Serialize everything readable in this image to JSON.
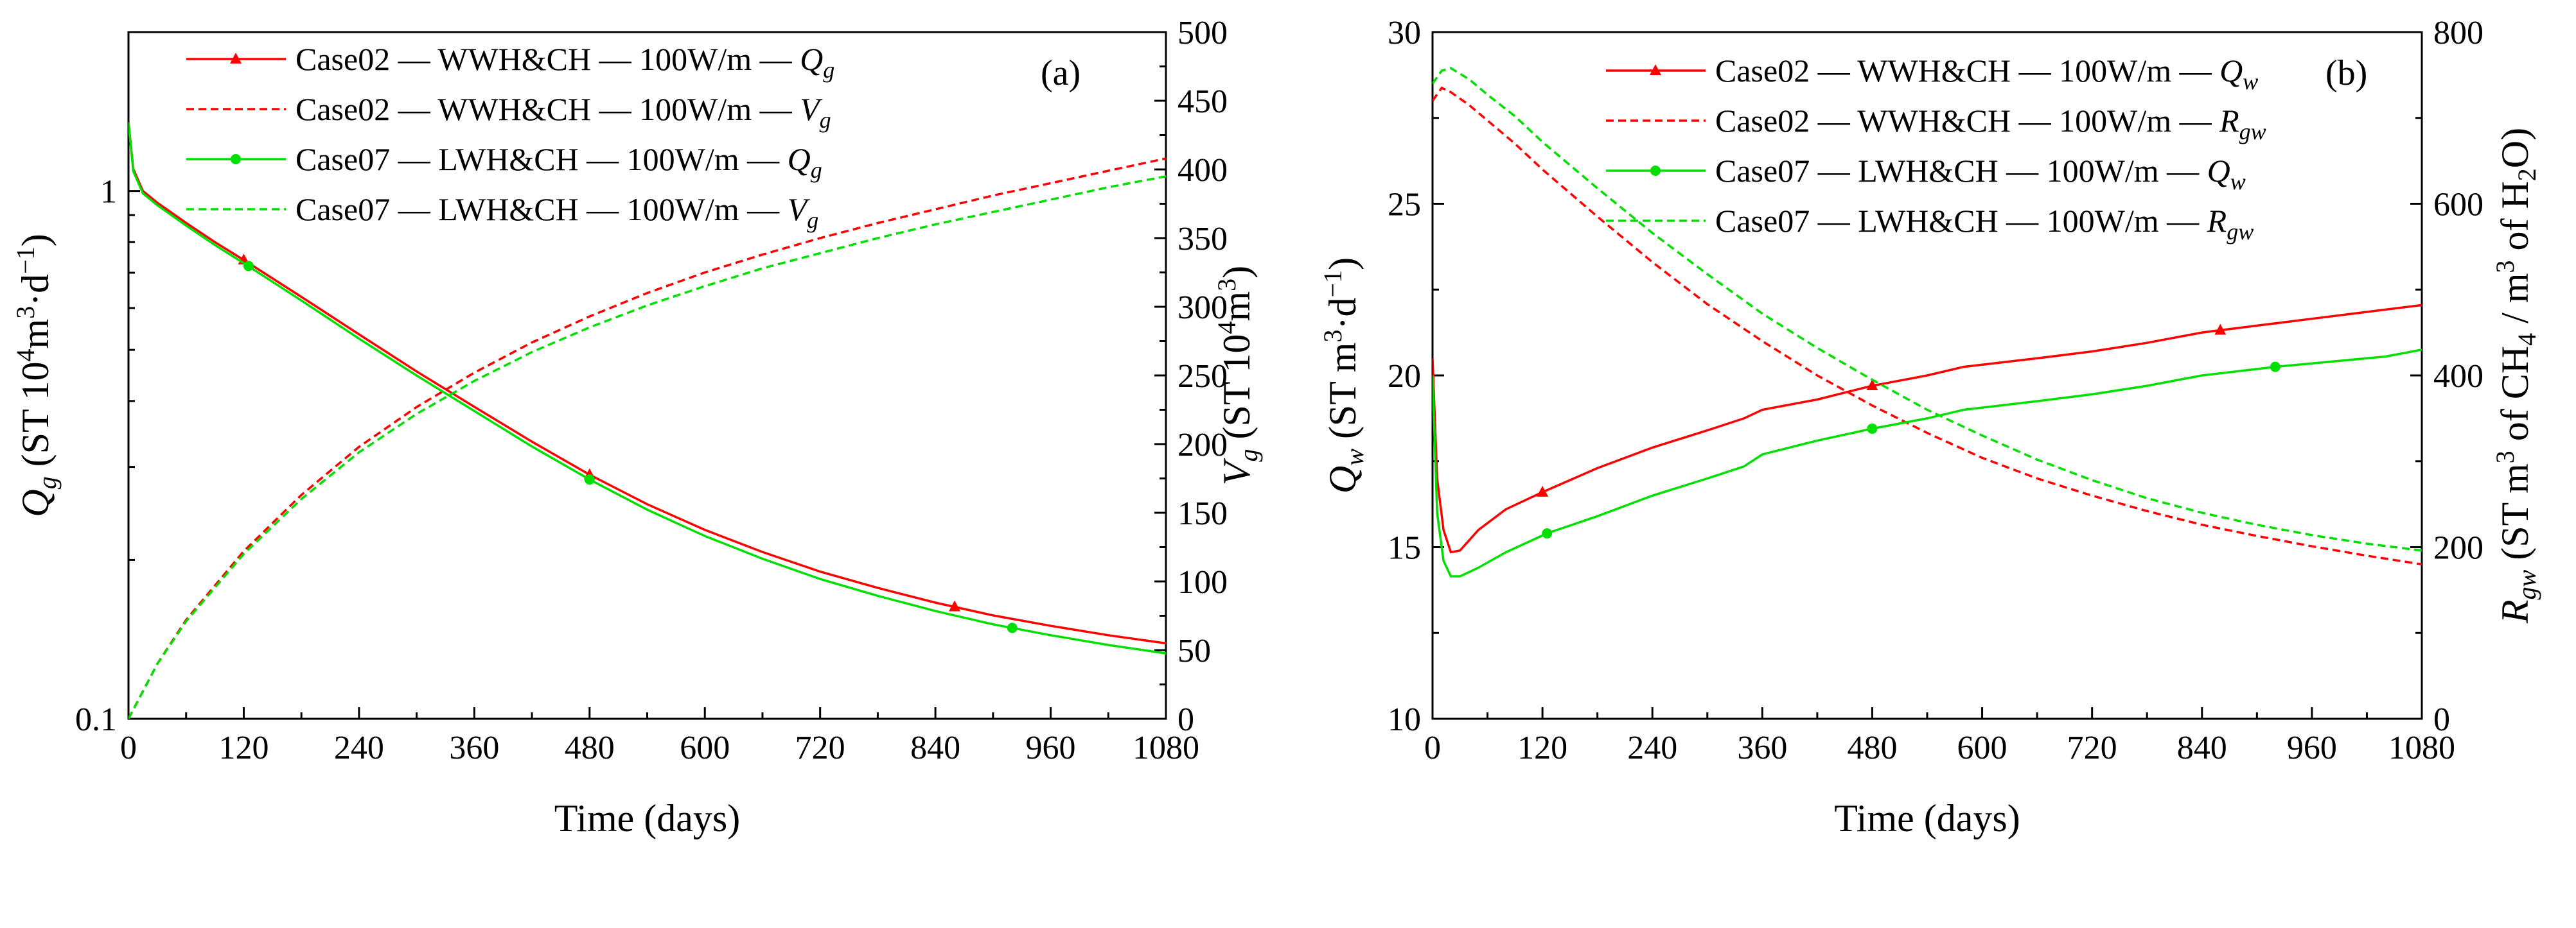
{
  "figure": {
    "colors": {
      "case02": "#ff0000",
      "case07": "#00e000",
      "axis": "#000000"
    }
  },
  "chart_data": [
    {
      "type": "line",
      "panel_label": "(a)",
      "xlabel": "Time (days)",
      "ylabel_left": {
        "main": "Q",
        "sub": "g",
        "rest": " (ST 10",
        "sup": "4",
        "rest2": "m",
        "sup2": "3",
        "rest3": "·d",
        "sup3": "−1",
        "close": ")"
      },
      "ylabel_right": {
        "main": "V",
        "sub": "g",
        "rest": " (ST 10",
        "sup": "4",
        "rest2": "m",
        "sup2": "3",
        "close": ")"
      },
      "xlim": [
        0,
        1080
      ],
      "x_ticks": [
        "0",
        "120",
        "240",
        "360",
        "480",
        "600",
        "720",
        "840",
        "960",
        "1080"
      ],
      "y_left_scale": "log",
      "y_left_lim": [
        0.1,
        2
      ],
      "y_left_ticks": [
        "0.1",
        "1"
      ],
      "y_right_lim": [
        0,
        500
      ],
      "y_right_ticks": [
        "0",
        "50",
        "100",
        "150",
        "200",
        "250",
        "300",
        "350",
        "400",
        "450",
        "500"
      ],
      "legend_location": "top-center",
      "series": [
        {
          "name": "Case02 — WWH&CH — 100W/m — Q_g",
          "label_prefix": "Case02 — WWH&CH — 100W/m — ",
          "label_var": "Q",
          "label_sub": "g",
          "axis": "left",
          "color_key": "case02",
          "dash": false,
          "marker": "triangle",
          "x": [
            0,
            5,
            15,
            30,
            60,
            90,
            120,
            180,
            240,
            300,
            360,
            420,
            480,
            540,
            600,
            660,
            720,
            780,
            840,
            900,
            960,
            1020,
            1080
          ],
          "values": [
            1.35,
            1.1,
            1.0,
            0.95,
            0.87,
            0.8,
            0.74,
            0.63,
            0.535,
            0.455,
            0.39,
            0.335,
            0.29,
            0.255,
            0.228,
            0.207,
            0.19,
            0.177,
            0.166,
            0.157,
            0.15,
            0.144,
            0.139
          ],
          "marker_x": [
            120,
            480,
            860
          ]
        },
        {
          "name": "Case02 — WWH&CH — 100W/m — V_g",
          "label_prefix": "Case02 — WWH&CH — 100W/m — ",
          "label_var": "V",
          "label_sub": "g",
          "axis": "right",
          "color_key": "case02",
          "dash": true,
          "marker": "none",
          "x": [
            0,
            30,
            60,
            120,
            180,
            240,
            300,
            360,
            420,
            480,
            540,
            600,
            660,
            720,
            780,
            840,
            900,
            960,
            1020,
            1080
          ],
          "values": [
            0,
            40,
            72,
            122,
            163,
            198,
            227,
            252,
            274,
            293,
            310,
            325,
            338,
            350,
            361,
            371,
            381,
            390,
            399,
            408
          ]
        },
        {
          "name": "Case07 — LWH&CH — 100W/m — Q_g",
          "label_prefix": "Case07 — LWH&CH — 100W/m — ",
          "label_var": "Q",
          "label_sub": "g",
          "axis": "left",
          "color_key": "case07",
          "dash": false,
          "marker": "circle",
          "x": [
            0,
            5,
            15,
            30,
            60,
            90,
            120,
            180,
            240,
            300,
            360,
            420,
            480,
            540,
            600,
            660,
            720,
            780,
            840,
            900,
            960,
            1020,
            1080
          ],
          "values": [
            1.35,
            1.09,
            0.99,
            0.94,
            0.86,
            0.79,
            0.73,
            0.62,
            0.525,
            0.447,
            0.383,
            0.328,
            0.284,
            0.249,
            0.222,
            0.201,
            0.184,
            0.171,
            0.16,
            0.151,
            0.144,
            0.138,
            0.133
          ],
          "marker_x": [
            125,
            480,
            920
          ]
        },
        {
          "name": "Case07 — LWH&CH — 100W/m — V_g",
          "label_prefix": "Case07 — LWH&CH — 100W/m — ",
          "label_var": "V",
          "label_sub": "g",
          "axis": "right",
          "color_key": "case07",
          "dash": true,
          "marker": "none",
          "x": [
            0,
            30,
            60,
            120,
            180,
            240,
            300,
            360,
            420,
            480,
            540,
            600,
            660,
            720,
            780,
            840,
            900,
            960,
            1020,
            1080
          ],
          "values": [
            0,
            40,
            71,
            120,
            160,
            194,
            222,
            246,
            267,
            285,
            301,
            315,
            328,
            339,
            350,
            360,
            369,
            378,
            387,
            395
          ]
        }
      ]
    },
    {
      "type": "line",
      "panel_label": "(b)",
      "xlabel": "Time (days)",
      "ylabel_left": {
        "main": "Q",
        "sub": "w",
        "rest": " (ST m",
        "sup": "3",
        "rest2": "·d",
        "sup2": "−1",
        "close": ")"
      },
      "ylabel_right": {
        "main": "R",
        "sub": "gw",
        "rest": " (ST m",
        "sup": "3",
        "rest2": " of CH",
        "sub2": "4",
        "rest3": " / m",
        "sup3": "3",
        "rest4": " of H",
        "sub3": "2",
        "close": "O)"
      },
      "xlim": [
        0,
        1080
      ],
      "x_ticks": [
        "0",
        "120",
        "240",
        "360",
        "480",
        "600",
        "720",
        "840",
        "960",
        "1080"
      ],
      "y_left_lim": [
        10,
        30
      ],
      "y_left_ticks": [
        "10",
        "15",
        "20",
        "25",
        "30"
      ],
      "y_right_lim": [
        0,
        800
      ],
      "y_right_ticks": [
        "0",
        "200",
        "400",
        "600",
        "800"
      ],
      "legend_location": "top-center",
      "series": [
        {
          "name": "Case02 — WWH&CH — 100W/m — Q_w",
          "label_prefix": "Case02 — WWH&CH — 100W/m — ",
          "label_var": "Q",
          "label_sub": "w",
          "axis": "left",
          "color_key": "case02",
          "dash": false,
          "marker": "triangle",
          "x": [
            0,
            5,
            12,
            20,
            30,
            50,
            80,
            120,
            180,
            240,
            300,
            340,
            360,
            420,
            480,
            540,
            580,
            660,
            720,
            780,
            840,
            900,
            960,
            1020,
            1080
          ],
          "values": [
            20.5,
            17.0,
            15.5,
            14.85,
            14.9,
            15.5,
            16.1,
            16.6,
            17.3,
            17.9,
            18.4,
            18.75,
            19.0,
            19.3,
            19.7,
            20.0,
            20.25,
            20.5,
            20.7,
            20.95,
            21.25,
            21.45,
            21.65,
            21.85,
            22.05
          ],
          "marker_x": [
            120,
            480,
            860
          ]
        },
        {
          "name": "Case02 — WWH&CH — 100W/m — R_gw",
          "label_prefix": "Case02 — WWH&CH — 100W/m — ",
          "label_var": "R",
          "label_sub": "gw",
          "axis": "right",
          "color_key": "case02",
          "dash": true,
          "marker": "none",
          "x": [
            0,
            10,
            20,
            40,
            60,
            90,
            120,
            180,
            240,
            300,
            360,
            420,
            480,
            540,
            600,
            660,
            720,
            780,
            840,
            900,
            960,
            1020,
            1080
          ],
          "values": [
            720,
            735,
            730,
            715,
            697,
            670,
            640,
            585,
            532,
            483,
            440,
            400,
            365,
            333,
            304,
            280,
            260,
            242,
            226,
            213,
            201,
            190,
            180
          ]
        },
        {
          "name": "Case07 — LWH&CH — 100W/m — Q_w",
          "label_prefix": "Case07 — LWH&CH — 100W/m — ",
          "label_var": "Q",
          "label_sub": "w",
          "axis": "left",
          "color_key": "case07",
          "dash": false,
          "marker": "circle",
          "x": [
            0,
            5,
            12,
            20,
            30,
            50,
            80,
            125,
            180,
            240,
            300,
            340,
            360,
            420,
            480,
            540,
            580,
            660,
            720,
            780,
            840,
            920,
            980,
            1040,
            1080
          ],
          "values": [
            20.0,
            16.0,
            14.6,
            14.15,
            14.15,
            14.4,
            14.85,
            15.4,
            15.9,
            16.5,
            17.0,
            17.35,
            17.7,
            18.1,
            18.45,
            18.75,
            19.0,
            19.25,
            19.45,
            19.7,
            20.0,
            20.25,
            20.4,
            20.55,
            20.75
          ],
          "marker_x": [
            125,
            480,
            920
          ]
        },
        {
          "name": "Case07 — LWH&CH — 100W/m — R_gw",
          "label_prefix": "Case07 — LWH&CH — 100W/m — ",
          "label_var": "R",
          "label_sub": "gw",
          "axis": "right",
          "color_key": "case07",
          "dash": true,
          "marker": "none",
          "x": [
            0,
            10,
            20,
            40,
            60,
            90,
            120,
            180,
            240,
            300,
            360,
            420,
            480,
            540,
            600,
            660,
            720,
            780,
            840,
            900,
            960,
            1020,
            1080
          ],
          "values": [
            740,
            755,
            758,
            745,
            727,
            702,
            672,
            618,
            566,
            518,
            472,
            432,
            395,
            360,
            330,
            302,
            278,
            257,
            240,
            226,
            214,
            204,
            196
          ]
        }
      ]
    }
  ]
}
